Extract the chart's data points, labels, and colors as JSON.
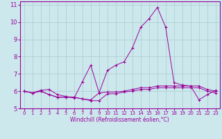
{
  "xlabel": "Windchill (Refroidissement éolien,°C)",
  "x": [
    0,
    1,
    2,
    3,
    4,
    5,
    6,
    7,
    8,
    9,
    10,
    11,
    12,
    13,
    14,
    15,
    16,
    17,
    18,
    19,
    20,
    21,
    22,
    23
  ],
  "line1_y": [
    6.0,
    5.9,
    6.0,
    5.8,
    5.65,
    5.65,
    5.65,
    5.55,
    5.5,
    5.9,
    5.95,
    5.95,
    6.0,
    6.1,
    6.2,
    6.2,
    6.3,
    6.3,
    6.3,
    6.3,
    6.3,
    6.3,
    6.1,
    6.0
  ],
  "line2_y": [
    6.0,
    5.9,
    6.05,
    6.1,
    5.8,
    5.7,
    5.6,
    6.55,
    7.5,
    5.9,
    7.2,
    7.5,
    7.7,
    8.5,
    9.7,
    10.2,
    10.85,
    9.7,
    6.5,
    6.35,
    6.3,
    5.5,
    5.8,
    6.05
  ],
  "line3_y": [
    6.0,
    5.9,
    6.0,
    5.8,
    5.65,
    5.65,
    5.65,
    5.55,
    5.45,
    5.45,
    5.85,
    5.85,
    5.95,
    6.0,
    6.1,
    6.1,
    6.2,
    6.2,
    6.2,
    6.2,
    6.2,
    6.2,
    6.0,
    5.9
  ],
  "line_color": "#990099",
  "bg_color": "#cce8ed",
  "grid_color": "#aacccc",
  "ylim": [
    5.0,
    11.2
  ],
  "xlim": [
    -0.5,
    23.5
  ],
  "yticks": [
    5,
    6,
    7,
    8,
    9,
    10,
    11
  ],
  "xticks": [
    0,
    1,
    2,
    3,
    4,
    5,
    6,
    7,
    8,
    9,
    10,
    11,
    12,
    13,
    14,
    15,
    16,
    17,
    18,
    19,
    20,
    21,
    22,
    23
  ],
  "tick_fontsize": 5.5,
  "xlabel_fontsize": 5.5
}
